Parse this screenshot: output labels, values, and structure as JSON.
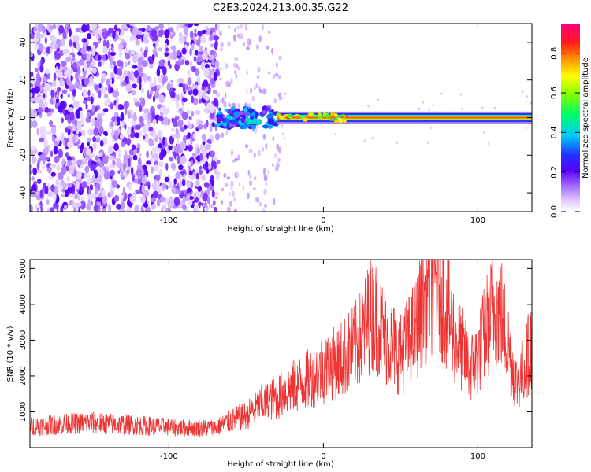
{
  "title": "C2E3.2024.213.00.35.G22",
  "chart_data": [
    {
      "type": "heatmap",
      "title": "C2E3.2024.213.00.35.G22",
      "xlabel": "Height of straight line (km)",
      "ylabel": "Frequency (Hz)",
      "xlim": [
        -190,
        135
      ],
      "ylim": [
        -50,
        50
      ],
      "x_ticks": [
        -100,
        0,
        100
      ],
      "y_ticks": [
        -40,
        -20,
        0,
        20,
        40
      ],
      "colorbar": {
        "label": "Normalized spectral amplitude",
        "range": [
          0,
          0.95
        ],
        "ticks": [
          0.0,
          0.2,
          0.4,
          0.6,
          0.8
        ],
        "colormap": [
          "#ffffff",
          "#e6ccff",
          "#b380ff",
          "#7a00ff",
          "#3300ff",
          "#00c8ff",
          "#00ff80",
          "#80ff00",
          "#ffff00",
          "#ff8000",
          "#ff0000",
          "#ff0080"
        ]
      },
      "regions": [
        {
          "x_range": [
            -190,
            -68
          ],
          "freq_range": [
            -50,
            50
          ],
          "amplitude": 0.1,
          "description_type": "broadband-noise"
        },
        {
          "x_range": [
            -68,
            -30
          ],
          "freq_range": [
            -6,
            6
          ],
          "amplitude": 0.35,
          "description_type": "transition-blobs"
        },
        {
          "x_range": [
            -30,
            135
          ],
          "center_freq": 0,
          "half_width": 2,
          "amplitude": 0.85,
          "description_type": "narrow-carrier-line"
        }
      ]
    },
    {
      "type": "line",
      "xlabel": "Height of straight line (km)",
      "ylabel": "SNR (10 * v/v)",
      "xlim": [
        -190,
        135
      ],
      "ylim": [
        0,
        5250
      ],
      "x_ticks": [
        -100,
        0,
        100
      ],
      "y_ticks": [
        1000,
        2000,
        3000,
        4000,
        5000
      ],
      "color": "#ee3333",
      "series": [
        {
          "x": [
            -190,
            -170,
            -150,
            -130,
            -110,
            -90,
            -70,
            -60,
            -50,
            -40,
            -30,
            -20,
            -10,
            0,
            10,
            20,
            25,
            30,
            35,
            40,
            50,
            60,
            65,
            70,
            75,
            80,
            85,
            90,
            95,
            100,
            105,
            110,
            115,
            120,
            125,
            130,
            135
          ],
          "y": [
            600,
            650,
            700,
            650,
            600,
            550,
            550,
            750,
            900,
            1200,
            1400,
            1700,
            1900,
            2200,
            2400,
            2800,
            3100,
            3700,
            3600,
            3100,
            2600,
            3300,
            4100,
            4600,
            4600,
            3800,
            3100,
            2700,
            2200,
            2500,
            3300,
            3900,
            3800,
            2800,
            1800,
            2200,
            3000
          ]
        }
      ]
    }
  ]
}
